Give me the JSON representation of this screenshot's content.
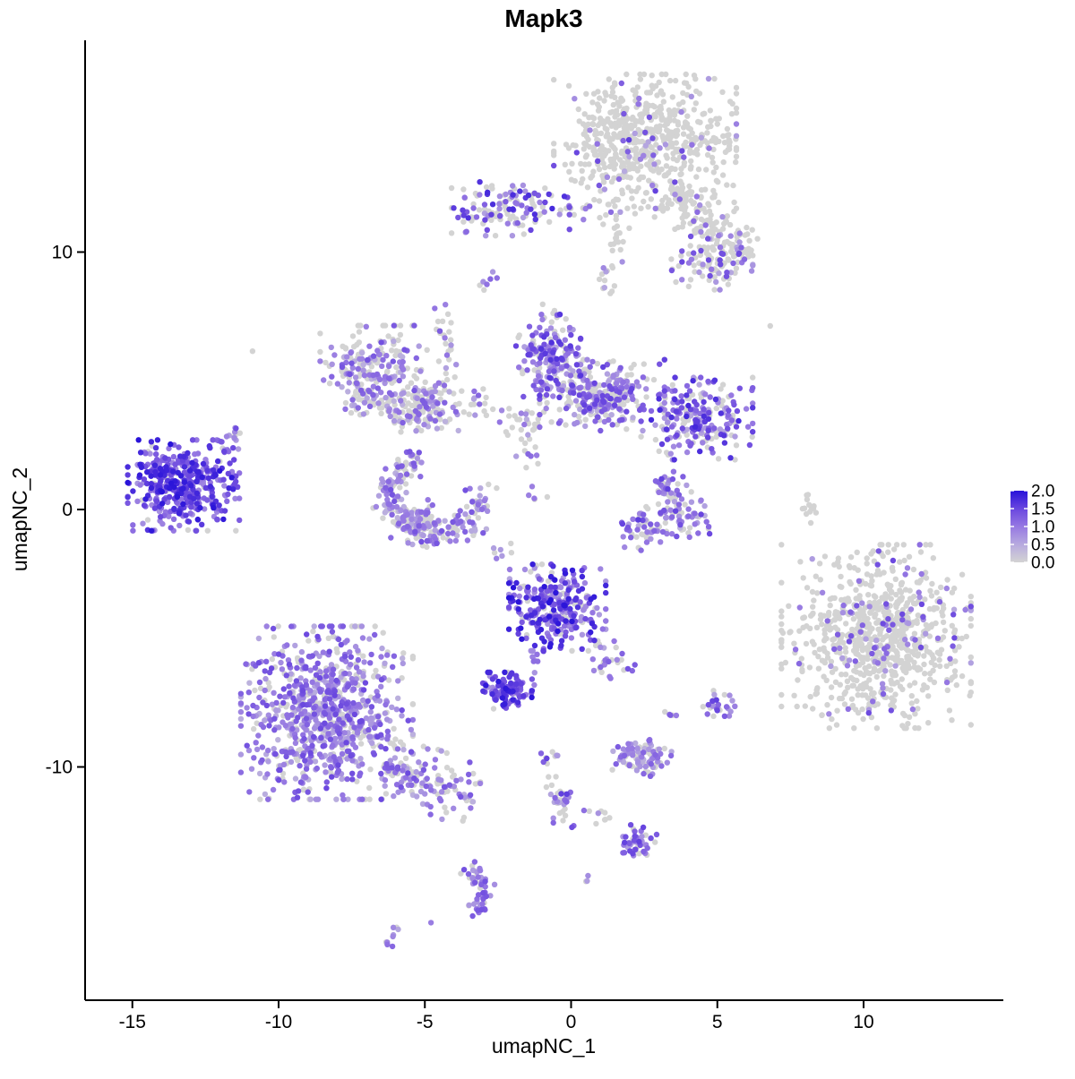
{
  "chart_data": {
    "type": "scatter",
    "title": "Mapk3",
    "xlabel": "umapNC_1",
    "ylabel": "umapNC_2",
    "x_ticks": [
      -15,
      -10,
      -5,
      0,
      5,
      10
    ],
    "x_tick_labels": [
      "-15",
      "-10",
      "-5",
      "0",
      "5",
      "10"
    ],
    "y_ticks": [
      10,
      0,
      -10
    ],
    "y_tick_labels": [
      "10",
      "0",
      "-10"
    ],
    "x_range": [
      -16.6,
      14.8
    ],
    "y_range": [
      -19.1,
      18.2
    ],
    "grid": false,
    "legend_position": "right",
    "point_radius": 3.2,
    "seed": 42,
    "colors": {
      "background": "#FFFFFF",
      "axis": "#000000",
      "gray_low": "#D3D3D3",
      "blue_high": "#2812D9",
      "stops": [
        [
          0,
          "#D3D3D3"
        ],
        [
          0.25,
          "#B7AADF"
        ],
        [
          0.5,
          "#9678E2"
        ],
        [
          0.75,
          "#6A47DF"
        ],
        [
          1,
          "#2812D9"
        ]
      ]
    },
    "legend": {
      "ticks": [
        "2.0",
        "1.5",
        "1.0",
        "0.5",
        "0.0"
      ],
      "values": [
        2.0,
        1.5,
        1.0,
        0.5,
        0.0
      ],
      "min": 0.0,
      "max": 2.0
    },
    "clusters": [
      {
        "name": "top-main",
        "shape": "blob",
        "cx": 2.53,
        "cy": 14.3,
        "rx": 2.6,
        "ry": 2.17,
        "n": 620,
        "gray": 0.93,
        "v": [
          0.5,
          1.6
        ]
      },
      {
        "name": "top-chain",
        "shape": "streak",
        "x1": -0.23,
        "y1": 11.61,
        "x2": 3.29,
        "y2": 11.75,
        "w": 0.25,
        "n": 26,
        "gray": 0.8,
        "v": [
          0.5,
          1.2
        ]
      },
      {
        "name": "top-arm",
        "shape": "streak",
        "x1": 3.29,
        "y1": 12.38,
        "x2": 6.05,
        "y2": 9.93,
        "w": 0.45,
        "n": 150,
        "gray": 0.87,
        "v": [
          0.5,
          1.4
        ]
      },
      {
        "name": "top-tail",
        "shape": "streak",
        "x1": 1.61,
        "y1": 11.33,
        "x2": 1.24,
        "y2": 8.36,
        "w": 0.22,
        "n": 30,
        "gray": 0.9,
        "v": [
          0.5,
          1.0
        ]
      },
      {
        "name": "top-right-blob",
        "shape": "blob",
        "cx": 4.82,
        "cy": 9.58,
        "rx": 1.16,
        "ry": 0.87,
        "n": 95,
        "gray": 0.72,
        "v": [
          0.5,
          1.5
        ]
      },
      {
        "name": "nk-cluster",
        "shape": "blob",
        "cx": -2.07,
        "cy": 11.68,
        "rx": 1.68,
        "ry": 0.87,
        "n": 135,
        "gray": 0.52,
        "v": [
          0.6,
          1.8
        ]
      },
      {
        "name": "speck-pair",
        "shape": "streak",
        "x1": -3.08,
        "y1": 8.64,
        "x2": -2.59,
        "y2": 9.23,
        "w": 0.12,
        "n": 7,
        "gray": 0.35,
        "v": [
          0.6,
          1.2
        ]
      },
      {
        "name": "mid-left",
        "shape": "blob",
        "cx": -6.66,
        "cy": 5.38,
        "rx": 1.6,
        "ry": 1.47,
        "n": 210,
        "gray": 0.52,
        "v": [
          0.4,
          1.4
        ]
      },
      {
        "name": "mid-left-arc",
        "shape": "streak",
        "x1": -7.43,
        "y1": 4.34,
        "x2": -5.13,
        "y2": 3.53,
        "w": 0.3,
        "n": 70,
        "gray": 0.5,
        "v": [
          0.4,
          1.3
        ]
      },
      {
        "name": "bridge-vertical",
        "shape": "streak",
        "x1": -4.61,
        "y1": 8.01,
        "x2": -4.06,
        "y2": 5.03,
        "w": 0.18,
        "n": 26,
        "gray": 0.62,
        "v": [
          0.5,
          1.3
        ]
      },
      {
        "name": "mid-center-blob",
        "shape": "blob",
        "cx": -4.82,
        "cy": 3.99,
        "rx": 1.0,
        "ry": 0.77,
        "n": 105,
        "gray": 0.48,
        "v": [
          0.4,
          1.3
        ]
      },
      {
        "name": "mid-chain",
        "shape": "streak",
        "x1": -3.45,
        "y1": 4.34,
        "x2": -1.15,
        "y2": 3.11,
        "w": 0.28,
        "n": 40,
        "gray": 0.55,
        "v": [
          0.4,
          1.2
        ]
      },
      {
        "name": "midright-top",
        "shape": "blob",
        "cx": -0.78,
        "cy": 5.98,
        "rx": 0.92,
        "ry": 1.33,
        "n": 165,
        "gray": 0.26,
        "v": [
          0.5,
          1.7
        ]
      },
      {
        "name": "midright-main",
        "shape": "blob",
        "cx": 1.06,
        "cy": 4.44,
        "rx": 1.78,
        "ry": 1.15,
        "n": 290,
        "gray": 0.38,
        "v": [
          0.4,
          1.6
        ]
      },
      {
        "name": "midright-east",
        "shape": "blob",
        "cx": 4.3,
        "cy": 3.53,
        "rx": 1.59,
        "ry": 1.33,
        "n": 235,
        "gray": 0.33,
        "v": [
          0.5,
          1.8
        ]
      },
      {
        "name": "k-down-chain",
        "shape": "streak",
        "x1": -1.61,
        "y1": 3.11,
        "x2": -1.15,
        "y2": 0.31,
        "w": 0.2,
        "n": 16,
        "gray": 0.55,
        "v": [
          0.5,
          1.2
        ]
      },
      {
        "name": "left-dense-purple",
        "shape": "blob",
        "cx": -13.25,
        "cy": 0.94,
        "rx": 1.59,
        "ry": 1.47,
        "n": 420,
        "gray": 0.05,
        "v": [
          0.7,
          2.0
        ]
      },
      {
        "name": "left-dense-streak",
        "shape": "streak",
        "x1": -11.87,
        "y1": 2.24,
        "x2": -11.32,
        "y2": 3.04,
        "w": 0.18,
        "n": 22,
        "gray": 0.15,
        "v": [
          0.6,
          1.6
        ]
      },
      {
        "name": "c-crescent",
        "shape": "crescent",
        "cx": -4.67,
        "cy": 0.49,
        "rx": 1.53,
        "ry": 1.57,
        "a0": -15,
        "a1": 255,
        "w": 0.3,
        "n": 230,
        "gray": 0.36,
        "v": [
          0.4,
          1.4
        ]
      },
      {
        "name": "c-crescent-fill",
        "shape": "blob",
        "cx": -5.28,
        "cy": -0.38,
        "rx": 0.92,
        "ry": 0.63,
        "n": 70,
        "gray": 0.42,
        "v": [
          0.4,
          1.2
        ]
      },
      {
        "name": "v-cluster-arm1",
        "shape": "streak",
        "x1": 3.08,
        "y1": 1.29,
        "x2": 3.75,
        "y2": -0.1,
        "w": 0.3,
        "n": 55,
        "gray": 0.3,
        "v": [
          0.5,
          1.6
        ]
      },
      {
        "name": "v-cluster-arm2",
        "shape": "streak",
        "x1": 1.7,
        "y1": -0.84,
        "x2": 4.67,
        "y2": -0.31,
        "w": 0.35,
        "n": 100,
        "gray": 0.36,
        "v": [
          0.4,
          1.6
        ]
      },
      {
        "name": "gray-comma",
        "shape": "streak",
        "x1": 8.04,
        "y1": 0.91,
        "x2": 8.25,
        "y2": -0.56,
        "w": 0.13,
        "n": 13,
        "gray": 1.0,
        "v": [
          0,
          0
        ]
      },
      {
        "name": "center-purple",
        "shape": "blob",
        "cx": -0.47,
        "cy": -3.81,
        "rx": 1.38,
        "ry": 1.4,
        "n": 300,
        "gray": 0.14,
        "v": [
          0.6,
          2.0
        ]
      },
      {
        "name": "center-tail",
        "shape": "streak",
        "x1": 0.69,
        "y1": -5.28,
        "x2": 1.91,
        "y2": -6.5,
        "w": 0.3,
        "n": 30,
        "gray": 0.42,
        "v": [
          0.5,
          1.4
        ]
      },
      {
        "name": "sparse-mid",
        "shape": "streak",
        "x1": -2.83,
        "y1": -1.43,
        "x2": -1.3,
        "y2": -2.48,
        "w": 0.3,
        "n": 12,
        "gray": 0.5,
        "v": [
          0.4,
          1.2
        ]
      },
      {
        "name": "small-dense-purple",
        "shape": "blob",
        "cx": -2.22,
        "cy": -7.03,
        "rx": 0.8,
        "ry": 0.59,
        "n": 105,
        "gray": 0.08,
        "v": [
          0.7,
          2.0
        ]
      },
      {
        "name": "small-dense-chain",
        "shape": "streak",
        "x1": -1.45,
        "y1": -6.15,
        "x2": -0.9,
        "y2": -5.45,
        "w": 0.15,
        "n": 8,
        "gray": 0.3,
        "v": [
          0.6,
          1.4
        ]
      },
      {
        "name": "bottomleft-big",
        "shape": "blob",
        "cx": -8.35,
        "cy": -7.9,
        "rx": 2.45,
        "ry": 2.8,
        "n": 830,
        "gray": 0.27,
        "v": [
          0.4,
          1.5
        ]
      },
      {
        "name": "bottomleft-tail",
        "shape": "streak",
        "x1": -6.35,
        "y1": -9.83,
        "x2": -3.29,
        "y2": -11.22,
        "w": 0.5,
        "n": 140,
        "gray": 0.35,
        "v": [
          0.4,
          1.4
        ]
      },
      {
        "name": "right-big-gray",
        "shape": "blob",
        "cx": 10.43,
        "cy": -4.93,
        "rx": 2.7,
        "ry": 2.97,
        "n": 800,
        "gray": 0.9,
        "v": [
          0.5,
          1.5
        ]
      },
      {
        "name": "right-gray-outliers",
        "shape": "dots",
        "pts": [
          [
            7.82,
            -3.81
          ],
          [
            11.5,
            -2.27
          ]
        ],
        "gray": 0,
        "v": [
          0.8,
          1.2
        ]
      },
      {
        "name": "small-island-13",
        "shape": "blob",
        "cx": 2.4,
        "cy": -9.65,
        "rx": 0.86,
        "ry": 0.59,
        "n": 95,
        "gray": 0.33,
        "v": [
          0.4,
          1.3
        ]
      },
      {
        "name": "streak-14",
        "shape": "streak",
        "x1": -0.9,
        "y1": -9.41,
        "x2": -0.05,
        "y2": -12.55,
        "w": 0.2,
        "n": 42,
        "gray": 0.45,
        "v": [
          0.5,
          1.6
        ]
      },
      {
        "name": "chain-14",
        "shape": "streak",
        "x1": 0.37,
        "y1": -11.57,
        "x2": 1.67,
        "y2": -12.2,
        "w": 0.15,
        "n": 9,
        "gray": 0.55,
        "v": [
          0.5,
          1.1
        ]
      },
      {
        "name": "small-island-15",
        "shape": "blob",
        "cx": 2.28,
        "cy": -12.9,
        "rx": 0.61,
        "ry": 0.56,
        "n": 50,
        "gray": 0.2,
        "v": [
          0.6,
          1.6
        ]
      },
      {
        "name": "bottom-streak-a",
        "shape": "streak",
        "x1": -3.51,
        "y1": -13.78,
        "x2": -2.89,
        "y2": -14.9,
        "w": 0.18,
        "n": 28,
        "gray": 0.2,
        "v": [
          0.6,
          1.5
        ]
      },
      {
        "name": "bottom-streak-b",
        "shape": "streak",
        "x1": -2.89,
        "y1": -14.9,
        "x2": -3.35,
        "y2": -15.84,
        "w": 0.18,
        "n": 24,
        "gray": 0.2,
        "v": [
          0.6,
          1.5
        ]
      },
      {
        "name": "bottom-dot",
        "shape": "dots",
        "pts": [
          [
            -4.79,
            -16.05
          ]
        ],
        "gray": 0,
        "v": [
          0.9,
          1.1
        ]
      },
      {
        "name": "tiny-sw",
        "shape": "streak",
        "x1": -6.35,
        "y1": -16.82,
        "x2": -5.83,
        "y2": -16.4,
        "w": 0.12,
        "n": 9,
        "gray": 0.45,
        "v": [
          0.5,
          1.2
        ]
      },
      {
        "name": "pair-east",
        "shape": "blob",
        "cx": 3.38,
        "cy": -7.9,
        "rx": 0.18,
        "ry": 0.15,
        "n": 5,
        "gray": 0.4,
        "v": [
          0.5,
          1.3
        ]
      },
      {
        "name": "cluster-east-small",
        "shape": "blob",
        "cx": 5.01,
        "cy": -7.59,
        "rx": 0.49,
        "ry": 0.46,
        "n": 28,
        "gray": 0.25,
        "v": [
          0.5,
          1.6
        ]
      },
      {
        "name": "dot-south",
        "shape": "blob",
        "cx": 0.54,
        "cy": -14.37,
        "rx": 0.12,
        "ry": 0.12,
        "n": 3,
        "gray": 0.35,
        "v": [
          0.6,
          1.2
        ]
      },
      {
        "name": "singlet-ne",
        "shape": "dots",
        "pts": [
          [
            6.81,
            7.13
          ]
        ],
        "gray": 1,
        "v": [
          0,
          0
        ]
      },
      {
        "name": "singlet-w",
        "shape": "dots",
        "pts": [
          [
            -10.89,
            6.15
          ]
        ],
        "gray": 1,
        "v": [
          0,
          0
        ]
      },
      {
        "name": "sprinkle-under-top",
        "shape": "blob",
        "cx": -0.3,
        "cy": 7.8,
        "rx": 1.1,
        "ry": 0.7,
        "n": 6,
        "gray": 0.95,
        "v": [
          0.5,
          1.0
        ]
      }
    ]
  }
}
